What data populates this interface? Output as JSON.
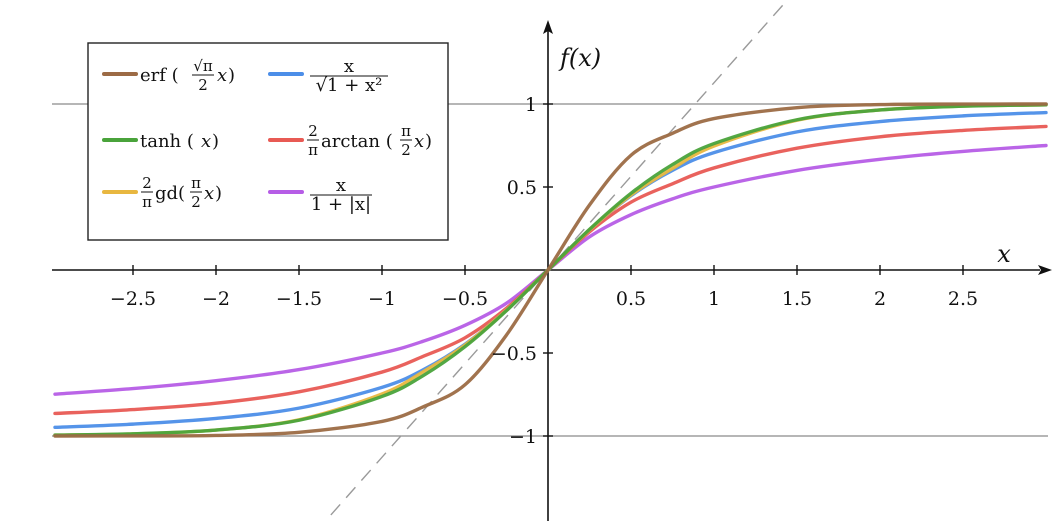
{
  "chart_data": {
    "type": "line",
    "x_axis_title": "x",
    "y_axis_title": "f(x)",
    "xlim": [
      -2.97,
      3.0
    ],
    "ylim": [
      -1.5,
      1.4
    ],
    "x_ticks": [
      -2.5,
      -2,
      -1.5,
      -1,
      -0.5,
      0.5,
      1,
      1.5,
      2,
      2.5
    ],
    "x_tick_labels": [
      "−2.5",
      "−2",
      "−1.5",
      "−1",
      "−0.5",
      "0.5",
      "1",
      "1.5",
      "2",
      "2.5"
    ],
    "y_ticks": [
      1,
      0.5,
      -0.5,
      -1
    ],
    "y_tick_labels": [
      "1",
      "0.5",
      "−0.5",
      "−1"
    ],
    "reference_lines": {
      "horizontal": [
        1,
        -1
      ],
      "color": "#8a8a8a",
      "diagonal_dashed": {
        "slope": 1.128,
        "color": "#9a9a9a"
      }
    },
    "legend_placement": "top-left",
    "x": [
      -2.97,
      -2.5,
      -2.0,
      -1.5,
      -1.0,
      -0.75,
      -0.5,
      -0.25,
      0.0,
      0.25,
      0.5,
      0.75,
      1.0,
      1.5,
      2.0,
      2.5,
      3.0
    ],
    "series": [
      {
        "key": "erf",
        "color": "#9c6b45",
        "values": [
          -1.0,
          -0.9995,
          -0.9965,
          -0.9778,
          -0.9121,
          -0.8237,
          -0.6914,
          -0.3914,
          0.0,
          0.3914,
          0.6914,
          0.8237,
          0.9121,
          0.9778,
          0.9965,
          0.9995,
          1.0
        ],
        "legend": {
          "fn": "erf",
          "open": "(",
          "sqrt_num": "√π",
          "frac_den": "2",
          "var": "x",
          "close": ")"
        }
      },
      {
        "key": "alg",
        "color": "#4c8ee8",
        "values": [
          -0.9477,
          -0.9285,
          -0.8944,
          -0.8321,
          -0.7071,
          -0.6,
          -0.4472,
          -0.2425,
          0.0,
          0.2425,
          0.4472,
          0.6,
          0.7071,
          0.8321,
          0.8944,
          0.9285,
          0.9487
        ],
        "legend": {
          "num": "x",
          "den": "√1 + x²"
        }
      },
      {
        "key": "tanh",
        "color": "#4aa33b",
        "values": [
          -0.9947,
          -0.9866,
          -0.964,
          -0.9051,
          -0.7616,
          -0.6351,
          -0.4621,
          -0.2449,
          0.0,
          0.2449,
          0.4621,
          0.6351,
          0.7616,
          0.9051,
          0.964,
          0.9866,
          0.9951
        ],
        "legend": {
          "fn": "tanh",
          "open": "(",
          "var": "x",
          "close": ")"
        }
      },
      {
        "key": "atan",
        "color": "#e85a54",
        "values": [
          -0.8642,
          -0.8409,
          -0.8026,
          -0.7337,
          -0.6148,
          -0.5193,
          -0.4084,
          -0.2302,
          0.0,
          0.2302,
          0.4084,
          0.5193,
          0.6148,
          0.7337,
          0.8026,
          0.8409,
          0.8648
        ],
        "legend": {
          "coef_num": "2",
          "coef_den": "π",
          "fn": "arctan",
          "open": "(",
          "arg_num": "π",
          "arg_den": "2",
          "var": "x",
          "close": ")"
        }
      },
      {
        "key": "gd",
        "color": "#e8b740",
        "values": [
          -0.9944,
          -0.9876,
          -0.9643,
          -0.9022,
          -0.7466,
          -0.6116,
          -0.4517,
          -0.2414,
          0.0,
          0.2414,
          0.4517,
          0.6116,
          0.7466,
          0.9022,
          0.9643,
          0.9876,
          0.9949
        ],
        "legend": {
          "coef_num": "2",
          "coef_den": "π",
          "fn": "gd",
          "open": "(",
          "arg_num": "π",
          "arg_den": "2",
          "var": "x",
          "close": ")"
        }
      },
      {
        "key": "abs",
        "color": "#b65de6",
        "values": [
          -0.7481,
          -0.7143,
          -0.6667,
          -0.6,
          -0.5,
          -0.4286,
          -0.3333,
          -0.2,
          0.0,
          0.2,
          0.3333,
          0.4286,
          0.5,
          0.6,
          0.6667,
          0.7143,
          0.75
        ],
        "legend": {
          "num": "x",
          "den": "1 + |x|"
        }
      }
    ]
  }
}
